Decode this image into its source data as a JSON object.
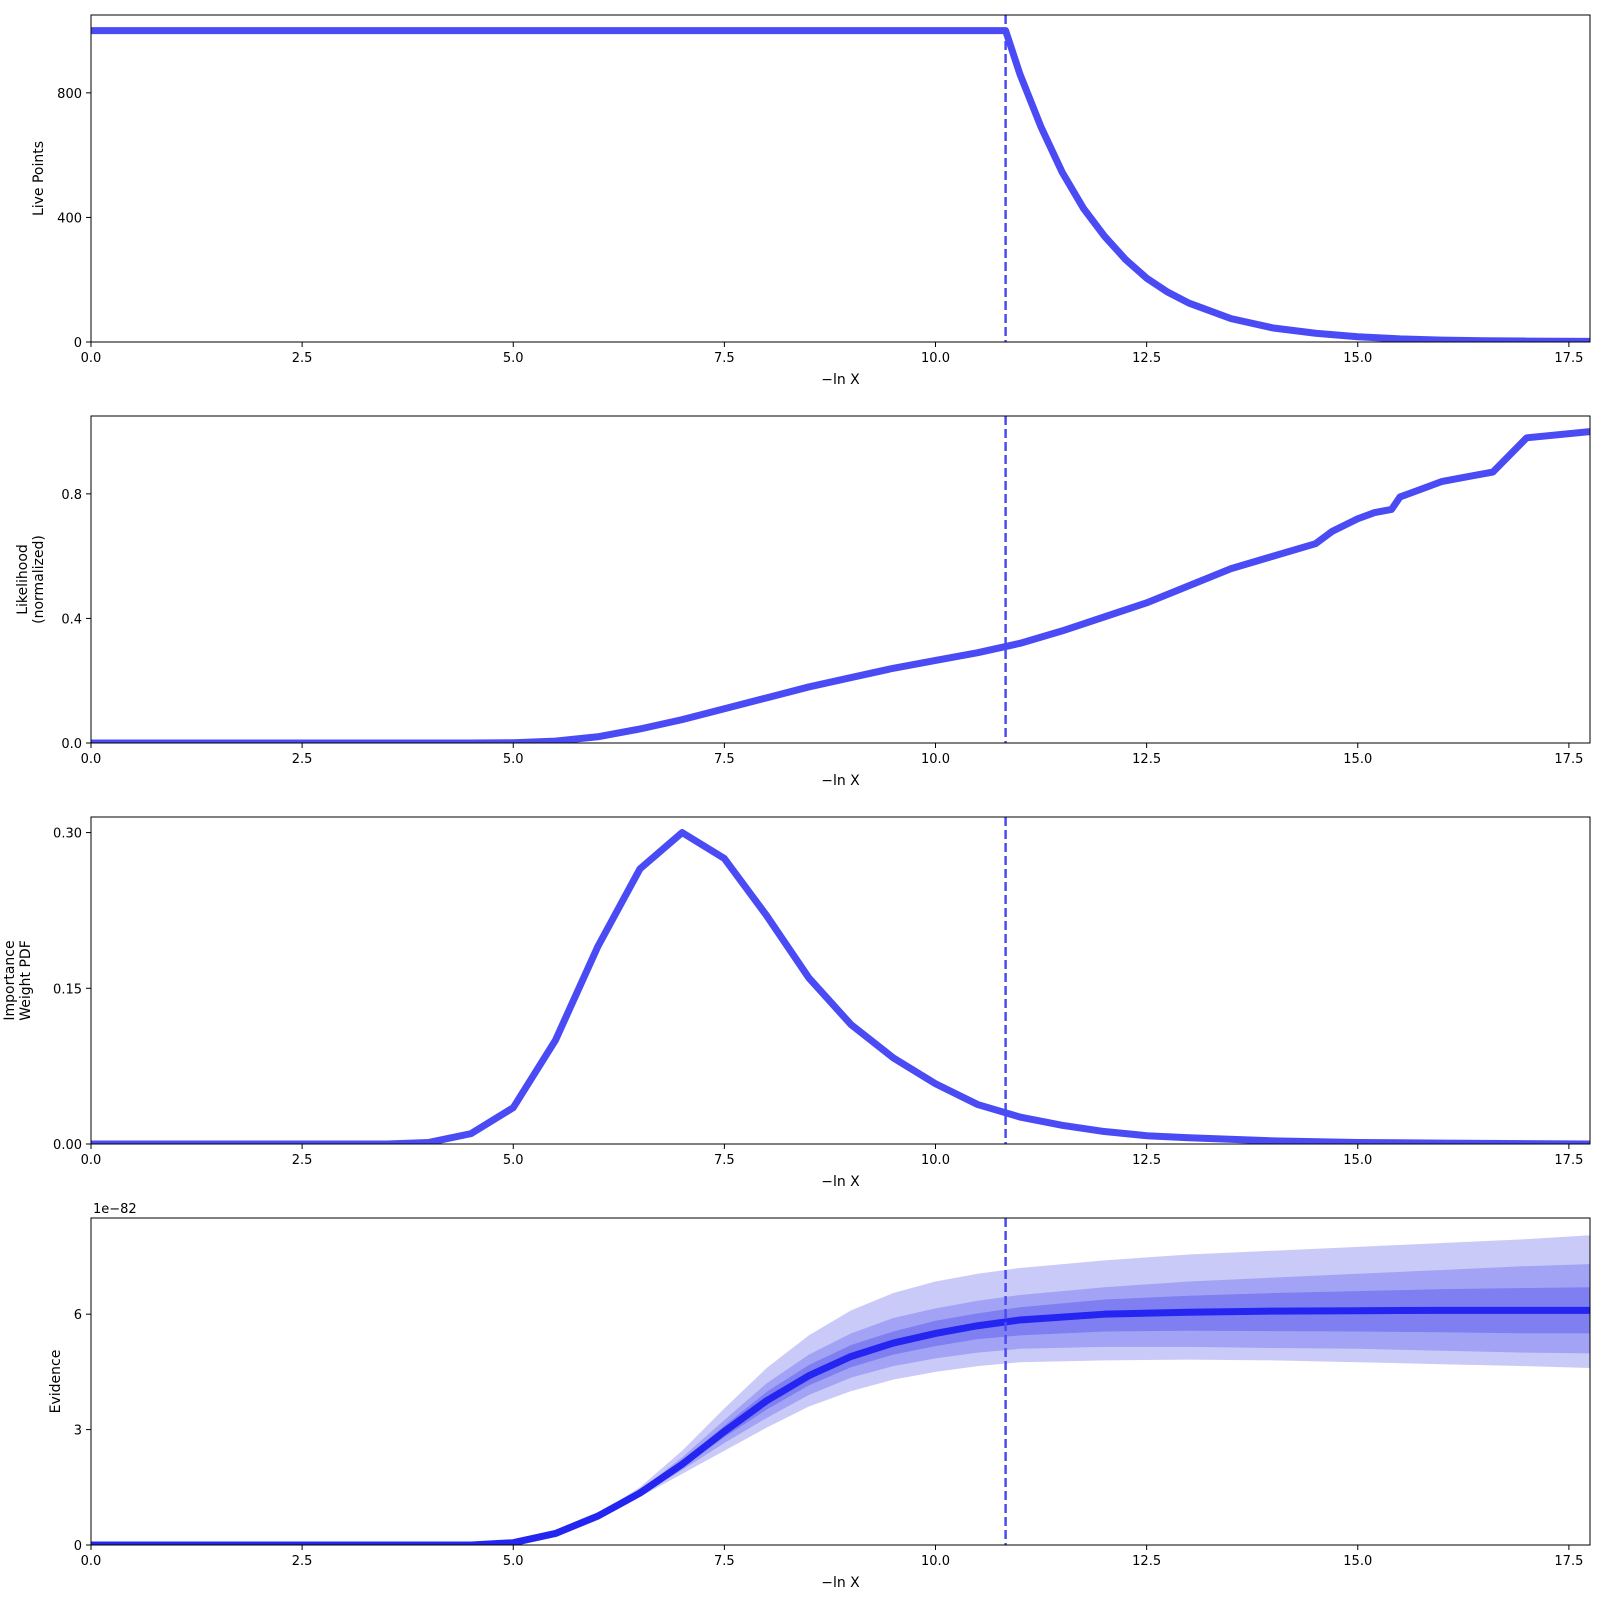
{
  "figure": {
    "colors": {
      "line": "#4b4bf5",
      "evidence_line": "#2525f2",
      "band_1sigma": "#7f7ff2",
      "band_2sigma": "#a3a3f5",
      "band_3sigma": "#cacaf9",
      "axes": "#000000",
      "background": "#ffffff"
    }
  },
  "chart_data": [
    {
      "type": "line",
      "title": "",
      "xlabel": "−ln X",
      "ylabel": "Live Points",
      "xlim": [
        0,
        17.75
      ],
      "ylim": [
        0,
        1050
      ],
      "xticks": [
        0,
        2.5,
        5,
        7.5,
        10,
        12.5,
        15,
        17.5
      ],
      "xtick_labels": [
        "0.0",
        "2.5",
        "5.0",
        "7.5",
        "10.0",
        "12.5",
        "15.0",
        "17.5"
      ],
      "yticks": [
        0,
        400,
        800
      ],
      "ytick_labels": [
        "0",
        "400",
        "800"
      ],
      "vline_x": 10.83,
      "grid": false,
      "series": [
        {
          "x": [
            0,
            10.83,
            11.0,
            11.25,
            11.5,
            11.75,
            12.0,
            12.25,
            12.5,
            12.75,
            13.0,
            13.5,
            14.0,
            14.5,
            15.0,
            15.5,
            16.0,
            16.5,
            17.0,
            17.75
          ],
          "values": [
            1000,
            1000,
            860,
            690,
            545,
            430,
            340,
            265,
            205,
            160,
            125,
            75,
            45,
            28,
            17,
            10,
            6,
            4,
            3,
            2
          ]
        }
      ]
    },
    {
      "type": "line",
      "title": "",
      "xlabel": "−ln X",
      "ylabel": [
        "Likelihood",
        "(normalized)"
      ],
      "xlim": [
        0,
        17.75
      ],
      "ylim": [
        0,
        1.05
      ],
      "xticks": [
        0,
        2.5,
        5,
        7.5,
        10,
        12.5,
        15,
        17.5
      ],
      "xtick_labels": [
        "0.0",
        "2.5",
        "5.0",
        "7.5",
        "10.0",
        "12.5",
        "15.0",
        "17.5"
      ],
      "yticks": [
        0,
        0.4,
        0.8
      ],
      "ytick_labels": [
        "0.0",
        "0.4",
        "0.8"
      ],
      "vline_x": 10.83,
      "grid": false,
      "series": [
        {
          "x": [
            0,
            4.5,
            5.0,
            5.5,
            6.0,
            6.5,
            7.0,
            7.5,
            8.0,
            8.5,
            9.0,
            9.5,
            10.0,
            10.5,
            11.0,
            11.5,
            12.0,
            12.5,
            13.0,
            13.5,
            14.0,
            14.5,
            14.7,
            15.0,
            15.2,
            15.4,
            15.5,
            15.6,
            15.8,
            16.0,
            16.3,
            16.6,
            17.0,
            17.75
          ],
          "values": [
            0,
            0,
            0.001,
            0.006,
            0.02,
            0.045,
            0.075,
            0.11,
            0.145,
            0.18,
            0.21,
            0.24,
            0.265,
            0.29,
            0.32,
            0.36,
            0.405,
            0.45,
            0.505,
            0.56,
            0.6,
            0.64,
            0.68,
            0.72,
            0.74,
            0.75,
            0.79,
            0.8,
            0.82,
            0.84,
            0.855,
            0.87,
            0.98,
            1.0
          ]
        }
      ]
    },
    {
      "type": "line",
      "title": "",
      "xlabel": "−ln X",
      "ylabel": [
        "Importance",
        "Weight PDF"
      ],
      "xlim": [
        0,
        17.75
      ],
      "ylim": [
        0,
        0.315
      ],
      "xticks": [
        0,
        2.5,
        5,
        7.5,
        10,
        12.5,
        15,
        17.5
      ],
      "xtick_labels": [
        "0.0",
        "2.5",
        "5.0",
        "7.5",
        "10.0",
        "12.5",
        "15.0",
        "17.5"
      ],
      "yticks": [
        0,
        0.15,
        0.3
      ],
      "ytick_labels": [
        "0.00",
        "0.15",
        "0.30"
      ],
      "vline_x": 10.83,
      "grid": false,
      "series": [
        {
          "x": [
            0,
            3.5,
            4.0,
            4.5,
            5.0,
            5.5,
            6.0,
            6.5,
            7.0,
            7.5,
            8.0,
            8.5,
            9.0,
            9.5,
            10.0,
            10.5,
            11.0,
            11.5,
            12.0,
            12.5,
            13.0,
            14.0,
            15.0,
            16.0,
            17.75
          ],
          "values": [
            0,
            0,
            0.0015,
            0.01,
            0.035,
            0.1,
            0.19,
            0.265,
            0.3,
            0.275,
            0.22,
            0.16,
            0.115,
            0.083,
            0.058,
            0.038,
            0.026,
            0.018,
            0.012,
            0.008,
            0.006,
            0.003,
            0.0015,
            0.0008,
            0
          ]
        }
      ]
    },
    {
      "type": "area",
      "title": "",
      "xlabel": "−ln X",
      "ylabel": "Evidence",
      "y_offset_label": "1e−82",
      "xlim": [
        0,
        17.75
      ],
      "ylim": [
        0,
        8.5
      ],
      "xticks": [
        0,
        2.5,
        5,
        7.5,
        10,
        12.5,
        15,
        17.5
      ],
      "xtick_labels": [
        "0.0",
        "2.5",
        "5.0",
        "7.5",
        "10.0",
        "12.5",
        "15.0",
        "17.5"
      ],
      "yticks": [
        0,
        3,
        6
      ],
      "ytick_labels": [
        "0",
        "3",
        "6"
      ],
      "vline_x": 10.83,
      "grid": false,
      "x": [
        0,
        4.5,
        5.0,
        5.5,
        6.0,
        6.5,
        7.0,
        7.5,
        8.0,
        8.5,
        9.0,
        9.5,
        10.0,
        10.5,
        11.0,
        12.0,
        13.0,
        14.0,
        15.0,
        16.0,
        17.0,
        17.75
      ],
      "median": [
        0,
        0,
        0.06,
        0.3,
        0.75,
        1.35,
        2.1,
        2.95,
        3.75,
        4.4,
        4.9,
        5.25,
        5.5,
        5.7,
        5.85,
        6.0,
        6.05,
        6.08,
        6.09,
        6.1,
        6.1,
        6.1
      ],
      "bands": [
        {
          "level": 3,
          "lower": [
            0,
            0,
            0.06,
            0.29,
            0.72,
            1.25,
            1.85,
            2.45,
            3.05,
            3.6,
            4.0,
            4.3,
            4.5,
            4.65,
            4.75,
            4.8,
            4.82,
            4.8,
            4.75,
            4.7,
            4.65,
            4.6
          ],
          "upper": [
            0,
            0,
            0.06,
            0.31,
            0.8,
            1.5,
            2.45,
            3.55,
            4.6,
            5.45,
            6.1,
            6.55,
            6.85,
            7.05,
            7.2,
            7.4,
            7.55,
            7.65,
            7.75,
            7.85,
            7.95,
            8.05
          ]
        },
        {
          "level": 2,
          "lower": [
            0,
            0,
            0.06,
            0.295,
            0.73,
            1.28,
            1.95,
            2.65,
            3.3,
            3.9,
            4.35,
            4.65,
            4.85,
            5.0,
            5.1,
            5.15,
            5.15,
            5.12,
            5.1,
            5.05,
            5.0,
            4.98
          ],
          "upper": [
            0,
            0,
            0.06,
            0.305,
            0.77,
            1.42,
            2.28,
            3.25,
            4.2,
            4.95,
            5.5,
            5.9,
            6.15,
            6.35,
            6.5,
            6.7,
            6.85,
            6.95,
            7.05,
            7.15,
            7.25,
            7.3
          ]
        },
        {
          "level": 1,
          "lower": [
            0,
            0,
            0.06,
            0.298,
            0.74,
            1.31,
            2.02,
            2.8,
            3.52,
            4.15,
            4.62,
            4.95,
            5.17,
            5.35,
            5.45,
            5.55,
            5.57,
            5.56,
            5.55,
            5.53,
            5.5,
            5.5
          ],
          "upper": [
            0,
            0,
            0.06,
            0.302,
            0.76,
            1.38,
            2.18,
            3.1,
            3.98,
            4.68,
            5.2,
            5.55,
            5.83,
            6.02,
            6.18,
            6.38,
            6.48,
            6.55,
            6.6,
            6.65,
            6.68,
            6.7
          ]
        }
      ]
    }
  ]
}
